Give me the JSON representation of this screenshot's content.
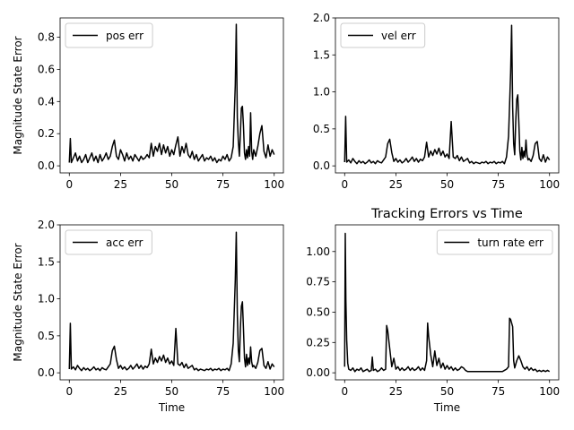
{
  "chart_data": [
    {
      "type": "line",
      "title": "",
      "xlabel": "",
      "ylabel": "Magnitude State Error",
      "xlim": [
        -4.5,
        104.5
      ],
      "ylim": [
        -0.044,
        0.92
      ],
      "xticks": [
        0,
        25,
        50,
        75,
        100
      ],
      "yticks": [
        0.0,
        0.2,
        0.4,
        0.6,
        0.8
      ],
      "ytick_labels": [
        "0.0",
        "0.2",
        "0.4",
        "0.6",
        "0.8"
      ],
      "legend": "top-left",
      "grid": false,
      "series": [
        {
          "name": "pos err",
          "color": "#000000",
          "x": [
            0,
            0.5,
            1,
            2,
            3,
            4,
            5,
            6,
            7,
            8,
            9,
            10,
            11,
            12,
            13,
            14,
            15,
            16,
            17,
            18,
            19,
            20,
            21,
            22,
            23,
            24,
            25,
            26,
            27,
            28,
            29,
            30,
            31,
            32,
            33,
            34,
            35,
            36,
            37,
            38,
            39,
            40,
            41,
            42,
            43,
            44,
            45,
            46,
            47,
            48,
            49,
            50,
            51,
            52,
            53,
            54,
            55,
            56,
            57,
            58,
            59,
            60,
            61,
            62,
            63,
            64,
            65,
            66,
            67,
            68,
            69,
            70,
            71,
            72,
            73,
            74,
            75,
            76,
            77,
            78,
            79,
            80,
            81,
            81.5,
            82,
            82.5,
            83,
            83.5,
            84,
            84.5,
            85,
            85.5,
            86,
            86.5,
            87,
            87.5,
            88,
            88.5,
            89,
            89.5,
            90,
            91,
            92,
            93,
            94,
            95,
            96,
            97,
            98,
            99,
            100
          ],
          "y": [
            0.02,
            0.17,
            0.02,
            0.05,
            0.08,
            0.03,
            0.06,
            0.02,
            0.04,
            0.07,
            0.02,
            0.05,
            0.08,
            0.03,
            0.06,
            0.02,
            0.07,
            0.03,
            0.05,
            0.08,
            0.04,
            0.06,
            0.12,
            0.16,
            0.06,
            0.04,
            0.1,
            0.07,
            0.03,
            0.08,
            0.04,
            0.06,
            0.03,
            0.07,
            0.05,
            0.03,
            0.06,
            0.04,
            0.05,
            0.07,
            0.05,
            0.14,
            0.06,
            0.12,
            0.09,
            0.14,
            0.07,
            0.13,
            0.08,
            0.12,
            0.06,
            0.1,
            0.07,
            0.13,
            0.18,
            0.06,
            0.12,
            0.08,
            0.14,
            0.07,
            0.05,
            0.09,
            0.04,
            0.07,
            0.03,
            0.05,
            0.07,
            0.03,
            0.05,
            0.04,
            0.06,
            0.03,
            0.05,
            0.02,
            0.04,
            0.03,
            0.06,
            0.04,
            0.07,
            0.03,
            0.05,
            0.12,
            0.5,
            0.88,
            0.3,
            0.15,
            0.06,
            0.2,
            0.36,
            0.37,
            0.25,
            0.08,
            0.04,
            0.1,
            0.05,
            0.12,
            0.06,
            0.33,
            0.09,
            0.04,
            0.1,
            0.06,
            0.12,
            0.2,
            0.25,
            0.09,
            0.05,
            0.13,
            0.06,
            0.1,
            0.07
          ]
        }
      ]
    },
    {
      "type": "line",
      "title": "",
      "xlabel": "",
      "ylabel": "",
      "xlim": [
        -4.5,
        104.5
      ],
      "ylim": [
        -0.095,
        2.0
      ],
      "xticks": [
        0,
        25,
        50,
        75,
        100
      ],
      "yticks": [
        0.0,
        0.5,
        1.0,
        1.5,
        2.0
      ],
      "ytick_labels": [
        "0.0",
        "0.5",
        "1.0",
        "1.5",
        "2.0"
      ],
      "legend": "top-left",
      "grid": false,
      "series": [
        {
          "name": "vel err",
          "color": "#000000",
          "x": [
            0,
            0.5,
            1,
            2,
            3,
            4,
            5,
            6,
            7,
            8,
            9,
            10,
            11,
            12,
            13,
            14,
            15,
            16,
            17,
            18,
            19,
            20,
            21,
            22,
            23,
            24,
            25,
            26,
            27,
            28,
            29,
            30,
            31,
            32,
            33,
            34,
            35,
            36,
            37,
            38,
            39,
            40,
            41,
            42,
            43,
            44,
            45,
            46,
            47,
            48,
            49,
            50,
            51,
            52,
            53,
            54,
            55,
            56,
            57,
            58,
            59,
            60,
            61,
            62,
            63,
            64,
            65,
            66,
            67,
            68,
            69,
            70,
            71,
            72,
            73,
            74,
            75,
            76,
            77,
            78,
            79,
            80,
            81,
            81.5,
            82,
            82.5,
            83,
            83.5,
            84,
            84.5,
            85,
            85.5,
            86,
            86.5,
            87,
            87.5,
            88,
            88.5,
            89,
            89.5,
            90,
            91,
            92,
            93,
            94,
            95,
            96,
            97,
            98,
            99,
            100
          ],
          "y": [
            0.05,
            0.67,
            0.05,
            0.08,
            0.04,
            0.1,
            0.06,
            0.03,
            0.07,
            0.04,
            0.06,
            0.03,
            0.05,
            0.08,
            0.04,
            0.06,
            0.03,
            0.07,
            0.05,
            0.04,
            0.08,
            0.12,
            0.3,
            0.36,
            0.18,
            0.06,
            0.1,
            0.05,
            0.08,
            0.04,
            0.06,
            0.1,
            0.05,
            0.08,
            0.12,
            0.06,
            0.1,
            0.05,
            0.09,
            0.07,
            0.12,
            0.32,
            0.12,
            0.2,
            0.14,
            0.22,
            0.16,
            0.24,
            0.14,
            0.2,
            0.12,
            0.16,
            0.1,
            0.6,
            0.12,
            0.1,
            0.14,
            0.07,
            0.12,
            0.06,
            0.08,
            0.1,
            0.04,
            0.06,
            0.03,
            0.05,
            0.04,
            0.03,
            0.05,
            0.04,
            0.06,
            0.03,
            0.05,
            0.04,
            0.06,
            0.03,
            0.05,
            0.04,
            0.06,
            0.03,
            0.12,
            0.4,
            1.25,
            1.9,
            0.8,
            0.3,
            0.15,
            0.6,
            0.9,
            0.96,
            0.6,
            0.2,
            0.08,
            0.25,
            0.1,
            0.2,
            0.12,
            0.35,
            0.15,
            0.08,
            0.1,
            0.06,
            0.14,
            0.3,
            0.33,
            0.1,
            0.06,
            0.15,
            0.05,
            0.12,
            0.08
          ]
        }
      ]
    },
    {
      "type": "line",
      "title": "",
      "xlabel": "Time",
      "ylabel": "Magnitude State Error",
      "xlim": [
        -4.5,
        104.5
      ],
      "ylim": [
        -0.095,
        2.0
      ],
      "xticks": [
        0,
        25,
        50,
        75,
        100
      ],
      "yticks": [
        0.0,
        0.5,
        1.0,
        1.5,
        2.0
      ],
      "ytick_labels": [
        "0.0",
        "0.5",
        "1.0",
        "1.5",
        "2.0"
      ],
      "legend": "top-left",
      "grid": false,
      "series": [
        {
          "name": "acc err",
          "color": "#000000",
          "x": [
            0,
            0.5,
            1,
            2,
            3,
            4,
            5,
            6,
            7,
            8,
            9,
            10,
            11,
            12,
            13,
            14,
            15,
            16,
            17,
            18,
            19,
            20,
            21,
            22,
            23,
            24,
            25,
            26,
            27,
            28,
            29,
            30,
            31,
            32,
            33,
            34,
            35,
            36,
            37,
            38,
            39,
            40,
            41,
            42,
            43,
            44,
            45,
            46,
            47,
            48,
            49,
            50,
            51,
            52,
            53,
            54,
            55,
            56,
            57,
            58,
            59,
            60,
            61,
            62,
            63,
            64,
            65,
            66,
            67,
            68,
            69,
            70,
            71,
            72,
            73,
            74,
            75,
            76,
            77,
            78,
            79,
            80,
            81,
            81.5,
            82,
            82.5,
            83,
            83.5,
            84,
            84.5,
            85,
            85.5,
            86,
            86.5,
            87,
            87.5,
            88,
            88.5,
            89,
            89.5,
            90,
            91,
            92,
            93,
            94,
            95,
            96,
            97,
            98,
            99,
            100
          ],
          "y": [
            0.05,
            0.67,
            0.05,
            0.08,
            0.04,
            0.1,
            0.06,
            0.03,
            0.07,
            0.04,
            0.06,
            0.03,
            0.05,
            0.08,
            0.04,
            0.06,
            0.03,
            0.07,
            0.05,
            0.04,
            0.08,
            0.12,
            0.3,
            0.36,
            0.18,
            0.06,
            0.1,
            0.05,
            0.08,
            0.04,
            0.06,
            0.1,
            0.05,
            0.08,
            0.12,
            0.06,
            0.1,
            0.05,
            0.09,
            0.07,
            0.12,
            0.32,
            0.12,
            0.2,
            0.14,
            0.22,
            0.16,
            0.24,
            0.14,
            0.2,
            0.12,
            0.16,
            0.1,
            0.6,
            0.12,
            0.1,
            0.14,
            0.07,
            0.12,
            0.06,
            0.08,
            0.1,
            0.04,
            0.06,
            0.03,
            0.05,
            0.04,
            0.03,
            0.05,
            0.04,
            0.06,
            0.03,
            0.05,
            0.04,
            0.06,
            0.03,
            0.05,
            0.04,
            0.06,
            0.03,
            0.12,
            0.4,
            1.25,
            1.9,
            0.8,
            0.3,
            0.15,
            0.6,
            0.9,
            0.96,
            0.6,
            0.2,
            0.08,
            0.25,
            0.1,
            0.2,
            0.12,
            0.35,
            0.15,
            0.08,
            0.1,
            0.06,
            0.14,
            0.3,
            0.33,
            0.1,
            0.06,
            0.15,
            0.05,
            0.12,
            0.08
          ]
        }
      ]
    },
    {
      "type": "line",
      "title": "Tracking Errors vs Time",
      "xlabel": "Time",
      "ylabel": "",
      "xlim": [
        -4.5,
        104.5
      ],
      "ylim": [
        -0.058,
        1.22
      ],
      "xticks": [
        0,
        25,
        50,
        75,
        100
      ],
      "yticks": [
        0.0,
        0.25,
        0.5,
        0.75,
        1.0
      ],
      "ytick_labels": [
        "0.00",
        "0.25",
        "0.50",
        "0.75",
        "1.00"
      ],
      "legend": "top-right",
      "grid": false,
      "series": [
        {
          "name": "turn rate err",
          "color": "#000000",
          "x": [
            0,
            0.3,
            0.6,
            1,
            1.5,
            2,
            3,
            4,
            5,
            6,
            7,
            8,
            9,
            10,
            11,
            12,
            13,
            13.5,
            14,
            15,
            16,
            17,
            18,
            19,
            20,
            20.5,
            21,
            22,
            23,
            24,
            25,
            26,
            27,
            28,
            29,
            30,
            31,
            32,
            33,
            34,
            35,
            36,
            37,
            38,
            39,
            40,
            40.5,
            41,
            42,
            43,
            44,
            45,
            46,
            47,
            48,
            49,
            50,
            51,
            52,
            53,
            54,
            55,
            56,
            57,
            58,
            59,
            60,
            61,
            62,
            63,
            64,
            65,
            66,
            67,
            68,
            69,
            70,
            71,
            72,
            73,
            74,
            75,
            76,
            77,
            78,
            79,
            80,
            80.5,
            81,
            82,
            82.5,
            83,
            84,
            85,
            86,
            87,
            88,
            89,
            90,
            91,
            92,
            93,
            94,
            95,
            96,
            97,
            98,
            99,
            100
          ],
          "y": [
            0.05,
            1.15,
            0.6,
            0.27,
            0.08,
            0.03,
            0.02,
            0.04,
            0.01,
            0.03,
            0.02,
            0.04,
            0.01,
            0.02,
            0.03,
            0.01,
            0.02,
            0.13,
            0.02,
            0.03,
            0.01,
            0.02,
            0.04,
            0.02,
            0.03,
            0.39,
            0.35,
            0.2,
            0.05,
            0.12,
            0.03,
            0.05,
            0.02,
            0.04,
            0.02,
            0.03,
            0.05,
            0.02,
            0.04,
            0.02,
            0.03,
            0.05,
            0.02,
            0.04,
            0.02,
            0.1,
            0.41,
            0.3,
            0.15,
            0.05,
            0.18,
            0.06,
            0.12,
            0.04,
            0.08,
            0.03,
            0.06,
            0.03,
            0.05,
            0.02,
            0.04,
            0.02,
            0.03,
            0.05,
            0.04,
            0.02,
            0.01,
            0.01,
            0.01,
            0.01,
            0.01,
            0.01,
            0.01,
            0.01,
            0.01,
            0.01,
            0.01,
            0.01,
            0.01,
            0.01,
            0.01,
            0.01,
            0.01,
            0.01,
            0.02,
            0.03,
            0.05,
            0.45,
            0.44,
            0.38,
            0.1,
            0.04,
            0.1,
            0.14,
            0.1,
            0.05,
            0.03,
            0.05,
            0.02,
            0.04,
            0.02,
            0.03,
            0.01,
            0.02,
            0.01,
            0.02,
            0.01,
            0.02,
            0.01
          ]
        }
      ]
    }
  ]
}
